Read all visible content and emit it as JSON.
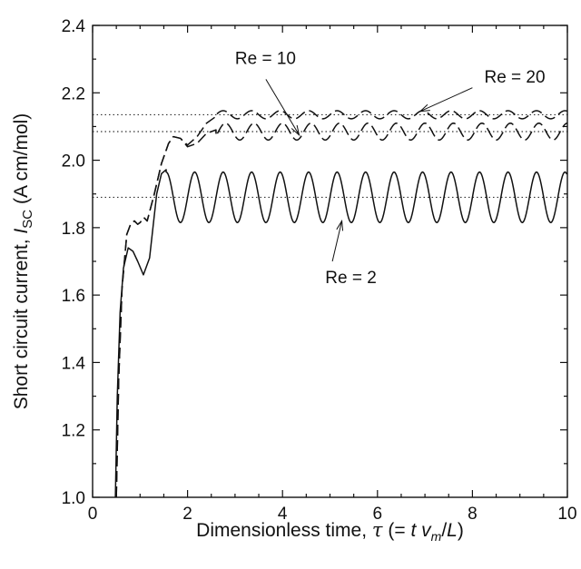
{
  "chart_data": {
    "type": "line",
    "xlabel": {
      "prefix": "Dimensionless time, ",
      "symbol": "τ",
      "expr_open": " (= ",
      "t": "t",
      "v": "v",
      "v_sub": "m",
      "slash": "/",
      "L": "L",
      "expr_close": ")"
    },
    "ylabel": {
      "prefix": "Short circuit current, ",
      "symbol": "I",
      "sub": "SC",
      "unit": " (A cm/mol)"
    },
    "xlim": [
      0,
      10
    ],
    "ylim": [
      1.0,
      2.4
    ],
    "x_ticks": [
      "0",
      "2",
      "4",
      "6",
      "8",
      "10"
    ],
    "y_ticks": [
      "1.0",
      "1.2",
      "1.4",
      "1.6",
      "1.8",
      "2.0",
      "2.2",
      "2.4"
    ],
    "grid": false,
    "legend": "none",
    "series": [
      {
        "name": "Re = 2",
        "style": "solid",
        "steady_mean": 1.89,
        "amplitude": 0.075,
        "period": 0.6,
        "transient": [
          [
            0.48,
            1.0
          ],
          [
            0.52,
            1.3
          ],
          [
            0.58,
            1.55
          ],
          [
            0.65,
            1.68
          ],
          [
            0.75,
            1.74
          ],
          [
            0.85,
            1.73
          ],
          [
            0.95,
            1.7
          ],
          [
            1.07,
            1.66
          ],
          [
            1.2,
            1.71
          ],
          [
            1.35,
            1.9
          ],
          [
            1.45,
            1.96
          ],
          [
            1.55,
            1.972
          ]
        ],
        "steady_from": 1.55,
        "phase_peak": 1.55
      },
      {
        "name": "Re = 10",
        "style": "dashed",
        "steady_mean": 2.085,
        "amplitude": 0.025,
        "period": 0.6,
        "transient": [
          [
            0.5,
            1.0
          ],
          [
            0.55,
            1.35
          ],
          [
            0.62,
            1.62
          ],
          [
            0.72,
            1.78
          ],
          [
            0.8,
            1.81
          ],
          [
            0.88,
            1.82
          ],
          [
            0.95,
            1.81
          ],
          [
            1.0,
            1.815
          ],
          [
            1.08,
            1.83
          ],
          [
            1.15,
            1.82
          ],
          [
            1.3,
            1.9
          ],
          [
            1.45,
            1.99
          ],
          [
            1.6,
            2.05
          ],
          [
            1.7,
            2.07
          ],
          [
            1.85,
            2.065
          ],
          [
            2.0,
            2.04
          ],
          [
            2.2,
            2.05
          ],
          [
            2.4,
            2.08
          ],
          [
            2.6,
            2.09
          ]
        ],
        "steady_from": 2.6,
        "phase_peak": 2.8
      },
      {
        "name": "Re = 20",
        "style": "dashed",
        "steady_mean": 2.135,
        "amplitude": 0.012,
        "period": 0.6,
        "transient": [
          [
            0.5,
            1.0
          ],
          [
            0.55,
            1.35
          ],
          [
            0.62,
            1.62
          ],
          [
            0.72,
            1.78
          ],
          [
            0.8,
            1.81
          ],
          [
            0.88,
            1.82
          ],
          [
            0.95,
            1.81
          ],
          [
            1.0,
            1.815
          ],
          [
            1.08,
            1.83
          ],
          [
            1.15,
            1.82
          ],
          [
            1.3,
            1.9
          ],
          [
            1.45,
            1.99
          ],
          [
            1.6,
            2.05
          ],
          [
            1.7,
            2.07
          ],
          [
            1.85,
            2.065
          ],
          [
            2.0,
            2.045
          ],
          [
            2.2,
            2.07
          ],
          [
            2.4,
            2.11
          ],
          [
            2.6,
            2.13
          ]
        ],
        "steady_from": 2.6,
        "phase_peak": 2.75
      }
    ],
    "reference_lines": [
      2.135,
      2.085,
      1.89
    ],
    "annotations": [
      {
        "text": "Re = 10",
        "label_at": [
          3.0,
          2.285
        ],
        "arrow_from": [
          3.65,
          2.24
        ],
        "arrow_to": [
          4.35,
          2.075
        ]
      },
      {
        "text": "Re = 20",
        "label_at": [
          8.25,
          2.23
        ],
        "arrow_from": [
          8.0,
          2.215
        ],
        "arrow_to": [
          6.9,
          2.145
        ]
      },
      {
        "text": "Re = 2",
        "label_at": [
          4.9,
          1.635
        ],
        "arrow_from": [
          5.05,
          1.7
        ],
        "arrow_to": [
          5.25,
          1.82
        ]
      }
    ]
  }
}
